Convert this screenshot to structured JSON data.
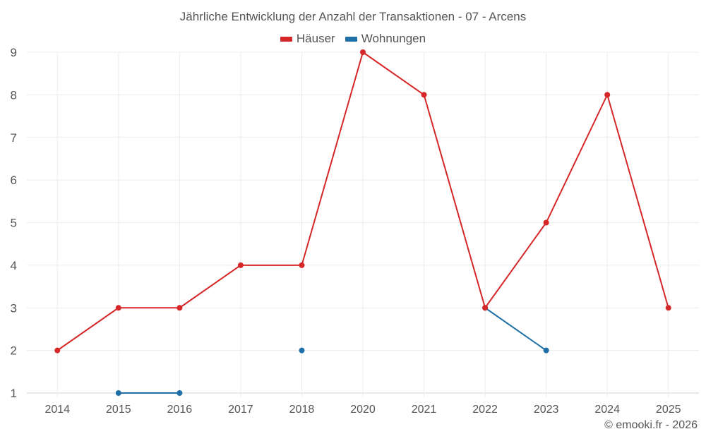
{
  "chart_data": {
    "type": "line",
    "title": "Jährliche Entwicklung der Anzahl der Transaktionen - 07 - Arcens",
    "categories": [
      "2014",
      "2015",
      "2016",
      "2017",
      "2018",
      "2020",
      "2021",
      "2022",
      "2023",
      "2024",
      "2025"
    ],
    "series": [
      {
        "name": "Häuser",
        "color": "#d62728",
        "values": [
          2,
          3,
          3,
          4,
          4,
          9,
          8,
          3,
          5,
          8,
          3
        ]
      },
      {
        "name": "Wohnungen",
        "color": "#1f6fa8",
        "values": [
          null,
          1,
          1,
          null,
          2,
          null,
          null,
          3,
          2,
          null,
          null
        ]
      }
    ],
    "xlabel": "",
    "ylabel": "",
    "yticks": [
      1,
      2,
      3,
      4,
      5,
      6,
      7,
      8,
      9
    ],
    "ylim": [
      1,
      9
    ],
    "grid": true,
    "legend_position": "top-center"
  },
  "credit": "© emooki.fr - 2026"
}
